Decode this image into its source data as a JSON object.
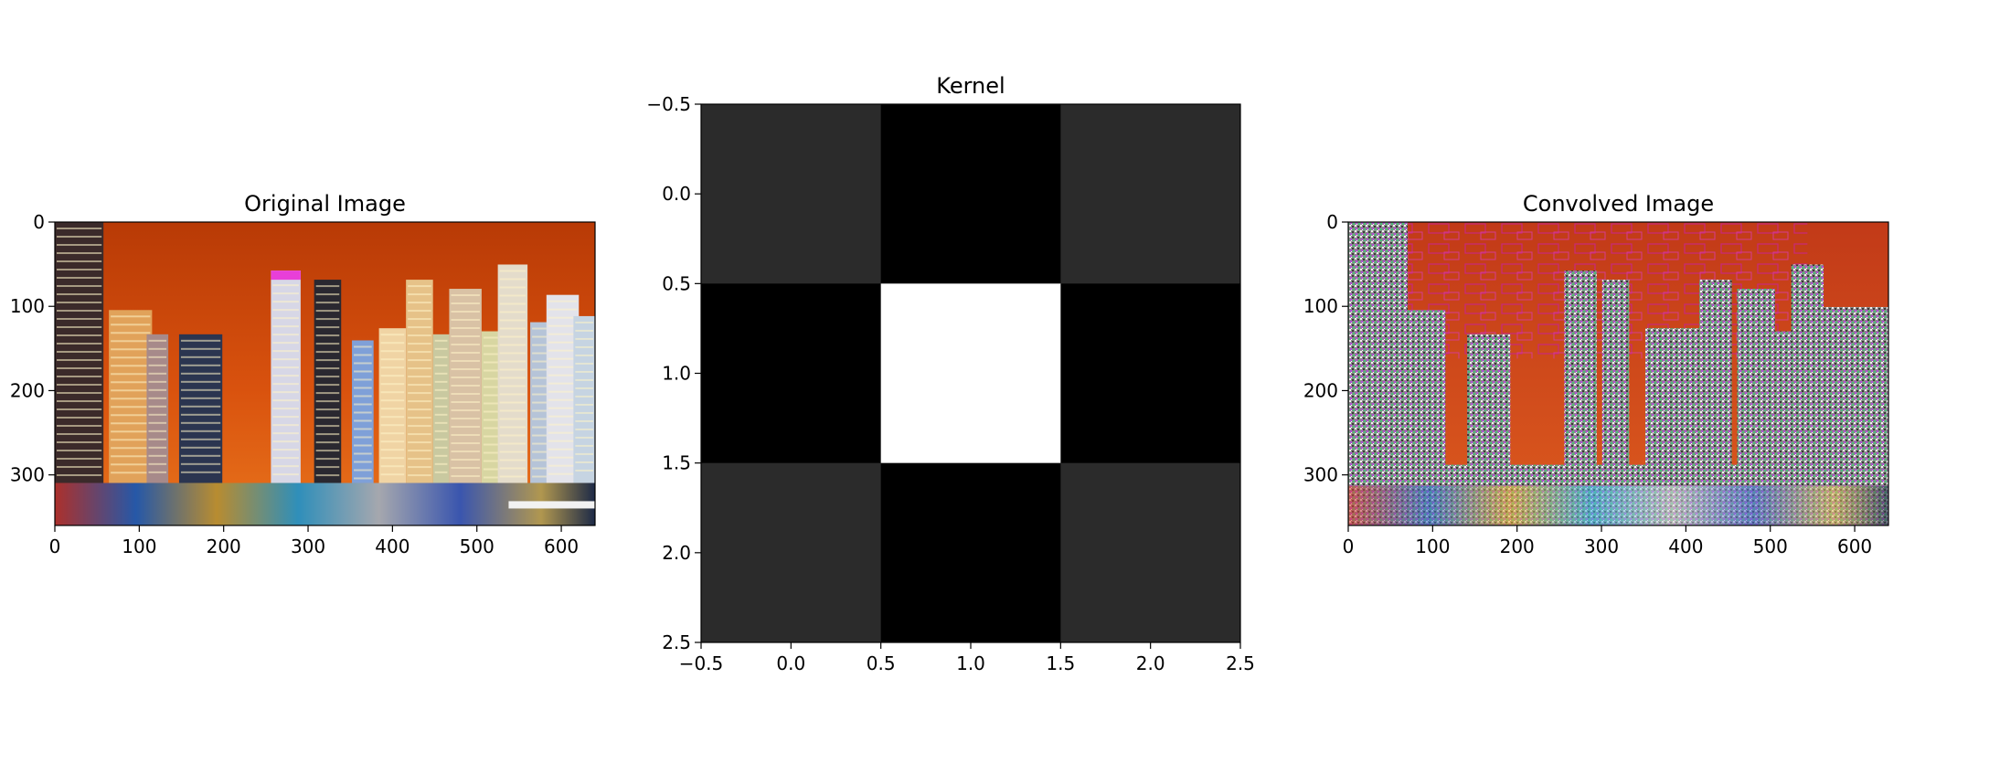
{
  "figure": {
    "background": "#ffffff"
  },
  "chart_data": [
    {
      "type": "image",
      "title": "Original Image",
      "image_description": "Night skyline of a city marina: tall illuminated skyscrapers against an orange-red sky, colorful reflections in the water below",
      "xlim": [
        0,
        640
      ],
      "ylim": [
        360,
        0
      ],
      "xticks": [
        0,
        100,
        200,
        300,
        400,
        500,
        600
      ],
      "yticks": [
        0,
        100,
        200,
        300
      ],
      "colors": {
        "sky_top": "#b83a06",
        "sky_mid": "#d9520e",
        "sky_low": "#e8741c",
        "water": "#1d2b4a"
      }
    },
    {
      "type": "heatmap",
      "title": "Kernel",
      "cmap": "gray",
      "matrix": [
        [
          -1,
          -2,
          -1
        ],
        [
          -2,
          4,
          -2
        ],
        [
          -1,
          -2,
          -1
        ]
      ],
      "display_levels": [
        [
          "#2b2b2b",
          "#000000",
          "#2b2b2b"
        ],
        [
          "#000000",
          "#ffffff",
          "#000000"
        ],
        [
          "#2b2b2b",
          "#000000",
          "#2b2b2b"
        ]
      ],
      "xlim": [
        -0.5,
        2.5
      ],
      "ylim": [
        2.5,
        -0.5
      ],
      "xticks": [
        -0.5,
        0.0,
        0.5,
        1.0,
        1.5,
        2.0,
        2.5
      ],
      "yticks": [
        -0.5,
        0.0,
        0.5,
        1.0,
        1.5,
        2.0,
        2.5
      ],
      "xtick_labels": [
        "−0.5",
        "0.0",
        "0.5",
        "1.0",
        "1.5",
        "2.0",
        "2.5"
      ],
      "ytick_labels": [
        "−0.5",
        "0.0",
        "0.5",
        "1.0",
        "1.5",
        "2.0",
        "2.5"
      ]
    },
    {
      "type": "image",
      "title": "Convolved Image",
      "image_description": "Edge-filtered version of the skyline: orange-red sky with magenta block artifacts, buildings rendered as noisy multicolor speckle",
      "xlim": [
        0,
        640
      ],
      "ylim": [
        360,
        0
      ],
      "xticks": [
        0,
        100,
        200,
        300,
        400,
        500,
        600
      ],
      "yticks": [
        0,
        100,
        200,
        300
      ],
      "colors": {
        "sky": "#d2461a",
        "artifact": "#c8287a",
        "noise": "#9a9a9a"
      }
    }
  ]
}
